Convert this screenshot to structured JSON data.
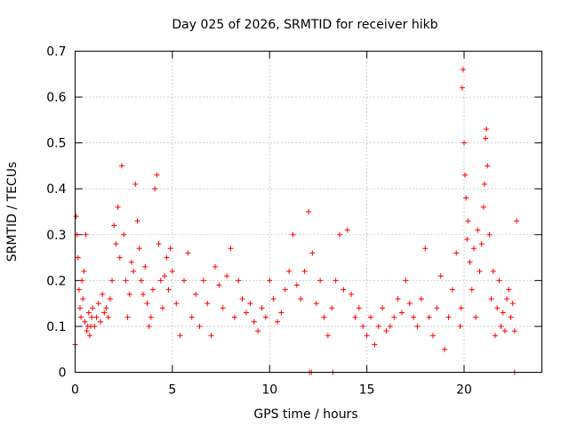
{
  "chart_data": {
    "type": "scatter",
    "title": "Day 025 of 2026, SRMTID for receiver hikb",
    "xlabel": "GPS time / hours",
    "ylabel": "SRMTID / TECUs",
    "xlim": [
      0,
      24
    ],
    "ylim": [
      0,
      0.7
    ],
    "xticks": [
      0,
      5,
      10,
      15,
      20
    ],
    "xtick_labels": [
      "0",
      "5",
      "10",
      "15",
      "20"
    ],
    "yticks": [
      0,
      0.1,
      0.2,
      0.3,
      0.4,
      0.5,
      0.6,
      0.7
    ],
    "ytick_labels": [
      "0",
      "0.1",
      "0.2",
      "0.3",
      "0.4",
      "0.5",
      "0.6",
      "0.7"
    ],
    "grid": true,
    "marker": "plus",
    "color": "#ff0000",
    "series": [
      {
        "name": "SRMTID",
        "x": [
          0.0,
          0.05,
          0.1,
          0.15,
          0.2,
          0.25,
          0.3,
          0.35,
          0.4,
          0.45,
          0.5,
          0.55,
          0.6,
          0.65,
          0.7,
          0.75,
          0.8,
          0.85,
          0.9,
          1.0,
          1.1,
          1.2,
          1.3,
          1.4,
          1.5,
          1.6,
          1.7,
          1.8,
          1.9,
          2.0,
          2.1,
          2.2,
          2.3,
          2.4,
          2.5,
          2.6,
          2.7,
          2.8,
          2.9,
          3.0,
          3.1,
          3.2,
          3.3,
          3.4,
          3.5,
          3.6,
          3.7,
          3.8,
          3.9,
          4.0,
          4.1,
          4.2,
          4.3,
          4.4,
          4.5,
          4.6,
          4.7,
          4.8,
          4.9,
          5.0,
          5.2,
          5.4,
          5.6,
          5.8,
          6.0,
          6.2,
          6.4,
          6.6,
          6.8,
          7.0,
          7.2,
          7.4,
          7.6,
          7.8,
          8.0,
          8.2,
          8.4,
          8.6,
          8.8,
          9.0,
          9.2,
          9.4,
          9.6,
          9.8,
          10.0,
          10.2,
          10.4,
          10.6,
          10.8,
          11.0,
          11.2,
          11.4,
          11.6,
          11.8,
          12.0,
          12.2,
          12.4,
          12.6,
          12.8,
          13.0,
          13.2,
          13.4,
          13.6,
          13.8,
          14.0,
          14.2,
          14.4,
          14.6,
          14.8,
          15.0,
          15.2,
          15.4,
          15.6,
          15.8,
          16.0,
          16.2,
          16.4,
          16.6,
          16.8,
          17.0,
          17.2,
          17.4,
          17.6,
          17.8,
          18.0,
          18.2,
          18.4,
          18.6,
          18.8,
          19.0,
          19.2,
          19.4,
          19.6,
          19.8,
          19.85,
          19.9,
          19.95,
          20.0,
          20.05,
          20.1,
          20.15,
          20.2,
          20.3,
          20.4,
          20.5,
          20.6,
          20.7,
          20.8,
          20.9,
          21.0,
          21.05,
          21.1,
          21.15,
          21.2,
          21.3,
          21.4,
          21.5,
          21.6,
          21.7,
          21.8,
          21.9,
          22.0,
          22.1,
          22.2,
          22.3,
          22.4,
          22.5,
          22.6,
          22.7,
          12.05,
          12.15,
          13.25,
          22.6
        ],
        "y": [
          0.06,
          0.34,
          0.3,
          0.25,
          0.18,
          0.14,
          0.12,
          0.2,
          0.16,
          0.22,
          0.11,
          0.3,
          0.09,
          0.1,
          0.13,
          0.08,
          0.1,
          0.12,
          0.14,
          0.1,
          0.12,
          0.15,
          0.11,
          0.17,
          0.13,
          0.14,
          0.12,
          0.16,
          0.2,
          0.32,
          0.28,
          0.36,
          0.25,
          0.45,
          0.3,
          0.2,
          0.12,
          0.17,
          0.24,
          0.22,
          0.41,
          0.33,
          0.27,
          0.2,
          0.17,
          0.23,
          0.15,
          0.1,
          0.12,
          0.18,
          0.4,
          0.43,
          0.28,
          0.2,
          0.14,
          0.21,
          0.25,
          0.18,
          0.27,
          0.22,
          0.15,
          0.08,
          0.2,
          0.26,
          0.12,
          0.17,
          0.1,
          0.2,
          0.15,
          0.08,
          0.23,
          0.19,
          0.14,
          0.21,
          0.27,
          0.12,
          0.2,
          0.16,
          0.13,
          0.15,
          0.11,
          0.09,
          0.14,
          0.12,
          0.2,
          0.16,
          0.11,
          0.13,
          0.18,
          0.22,
          0.3,
          0.19,
          0.16,
          0.22,
          0.35,
          0.26,
          0.15,
          0.2,
          0.12,
          0.08,
          0.14,
          0.2,
          0.3,
          0.18,
          0.31,
          0.17,
          0.12,
          0.14,
          0.1,
          0.08,
          0.12,
          0.06,
          0.1,
          0.14,
          0.09,
          0.1,
          0.12,
          0.16,
          0.13,
          0.2,
          0.15,
          0.12,
          0.1,
          0.16,
          0.27,
          0.12,
          0.08,
          0.14,
          0.21,
          0.05,
          0.12,
          0.18,
          0.26,
          0.1,
          0.14,
          0.62,
          0.66,
          0.5,
          0.43,
          0.38,
          0.29,
          0.33,
          0.24,
          0.18,
          0.27,
          0.12,
          0.31,
          0.22,
          0.28,
          0.36,
          0.41,
          0.51,
          0.53,
          0.45,
          0.3,
          0.16,
          0.22,
          0.08,
          0.14,
          0.2,
          0.1,
          0.13,
          0.09,
          0.16,
          0.18,
          0.12,
          0.15,
          0.09,
          0.33,
          0.0,
          0.0,
          0.0,
          0.0
        ]
      }
    ]
  }
}
